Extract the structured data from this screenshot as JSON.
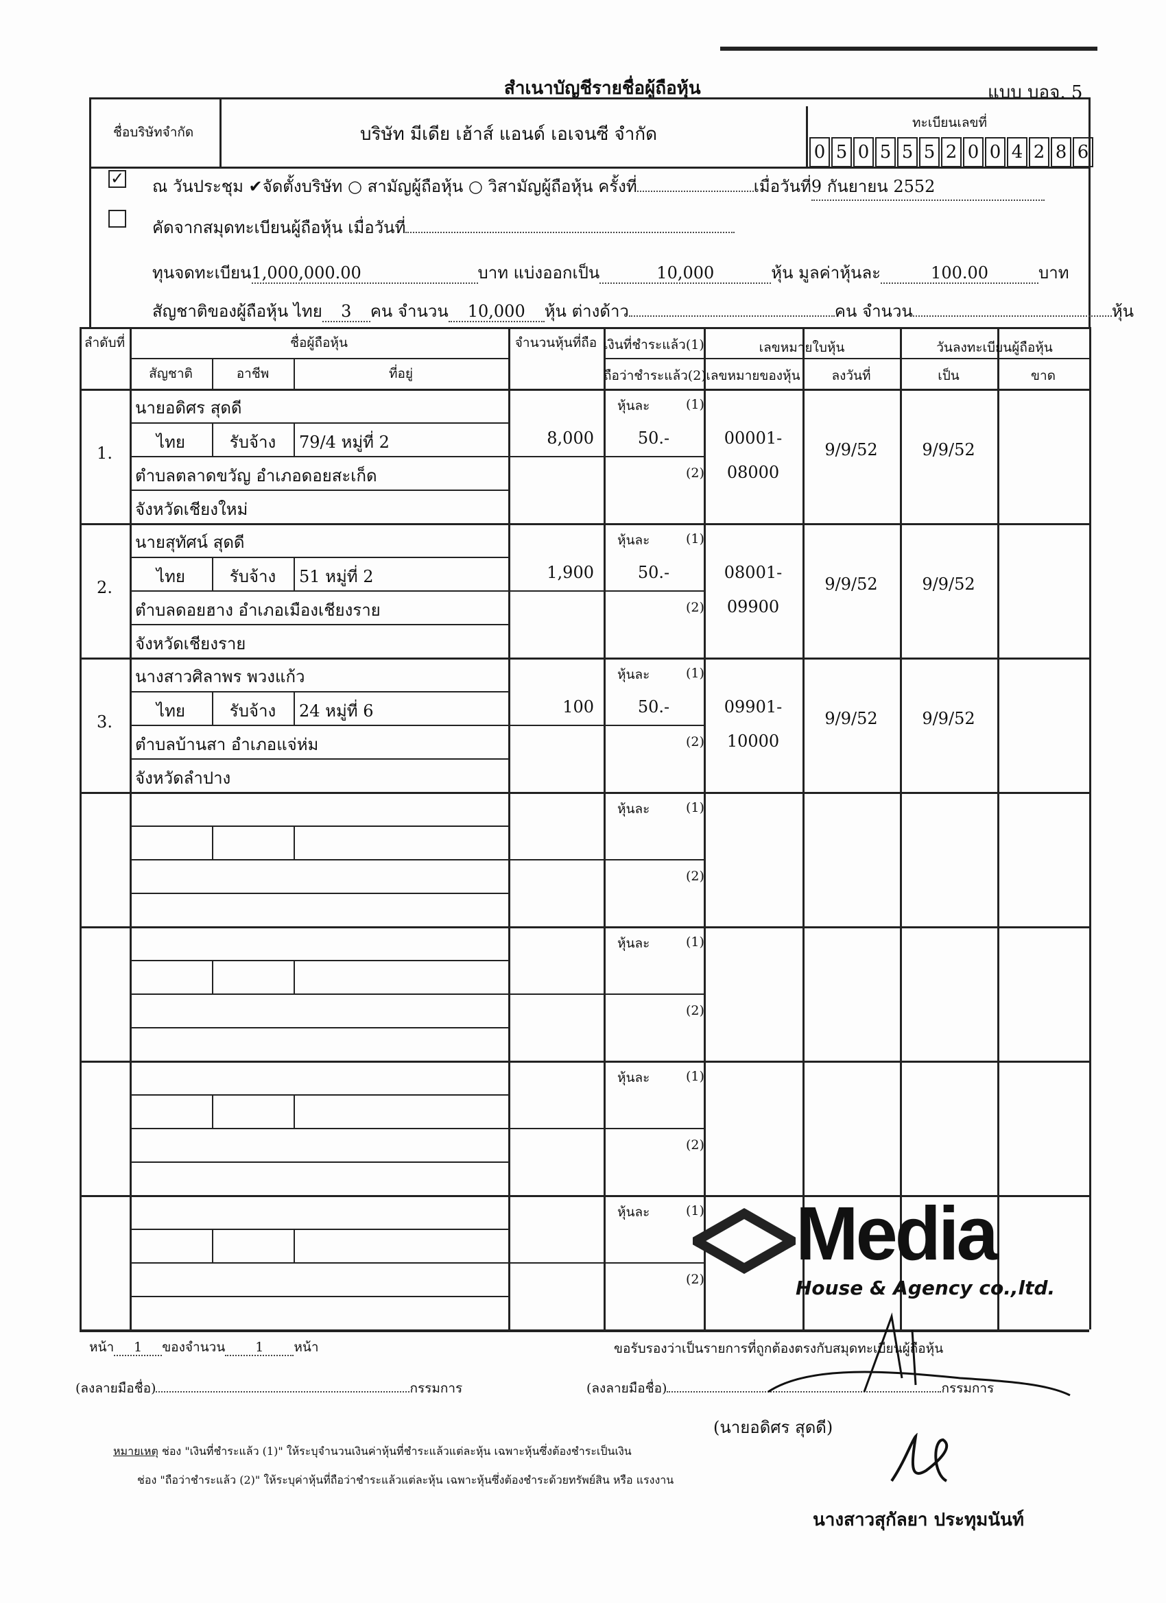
{
  "header": {
    "title": "สำเนาบัญชีรายชื่อผู้ถือหุ้น",
    "form_code": "แบบ บอจ. 5"
  },
  "company": {
    "label": "ชื่อบริษัทจำกัด",
    "name": "บริษัท  มีเดีย เฮ้าส์ แอนด์ เอเจนซี จำกัด",
    "reg_label": "ทะเบียนเลขที่",
    "reg_digits": [
      "0",
      "5",
      "0",
      "5",
      "5",
      "5",
      "2",
      "0",
      "0",
      "4",
      "2",
      "8",
      "6"
    ]
  },
  "meeting": {
    "checked": true,
    "text_prefix": "ณ วันประชุม",
    "opt_found": "จัดตั้งบริษัท",
    "opt_found_checked": true,
    "opt_ordinary": "สามัญผู้ถือหุ้น",
    "opt_extra": "วิสามัญผู้ถือหุ้น",
    "time_label": "ครั้งที่",
    "time_value": "",
    "date_label": "เมื่อวันที่",
    "date_value": "9 กันยายน 2552"
  },
  "copied": {
    "checked": false,
    "text": "คัดจากสมุดทะเบียนผู้ถือหุ้น  เมื่อวันที่",
    "date_value": ""
  },
  "capital": {
    "label": "ทุนจดทะเบียน",
    "amount": "1,000,000.00",
    "baht": "บาท แบ่งออกเป็น",
    "shares": "10,000",
    "shares_unit": "หุ้น มูลค่าหุ้นละ",
    "par": "100.00",
    "par_unit": "บาท"
  },
  "nationality": {
    "label": "สัญชาติของผู้ถือหุ้น  ไทย",
    "thai_count": "3",
    "person": "คน จำนวน",
    "thai_shares": "10,000",
    "shares_foreign": "หุ้น ต่างด้าว",
    "foreign_count": "",
    "person2": "คน จำนวน",
    "foreign_shares": "",
    "unit": "หุ้น"
  },
  "table": {
    "h_no": "ลำดับที่",
    "h_name": "ชื่อผู้ถือหุ้น",
    "h_nat": "สัญชาติ",
    "h_occ": "อาชีพ",
    "h_addr": "ที่อยู่",
    "h_shares": "จำนวนหุ้นที่ถือ",
    "h_paid1": "เงินที่ชำระแล้ว(1)",
    "h_paid2": "ถือว่าชำระแล้ว(2)",
    "h_cert": "เลขหมายใบหุ้น",
    "h_cert_no": "เลขหมายของหุ้น",
    "h_cert_date": "ลงวันที่",
    "h_reg": "วันลงทะเบียนผู้ถือหุ้น",
    "h_reg_in": "เป็น",
    "h_reg_out": "ขาด",
    "per_share": "หุ้นละ",
    "mark1": "(1)",
    "mark2": "(2)",
    "rows": [
      {
        "no": "1.",
        "name": "นายอดิศร  สุดดี",
        "nat": "ไทย",
        "occ": "รับจ้าง",
        "addr1": "79/4  หมู่ที่ 2",
        "addr2": "ตำบลตลาดขวัญ  อำเภอดอยสะเก็ด",
        "addr3": "จังหวัดเชียงใหม่",
        "shares": "8,000",
        "paid": "50.-",
        "cert_from": "00001-",
        "cert_to": "08000",
        "cert_date": "9/9/52",
        "reg_in": "9/9/52",
        "reg_out": ""
      },
      {
        "no": "2.",
        "name": "นายสุทัศน์  สุดดี",
        "nat": "ไทย",
        "occ": "รับจ้าง",
        "addr1": "51  หมู่ที่ 2",
        "addr2": "ตำบลดอยฮาง  อำเภอเมืองเชียงราย",
        "addr3": "จังหวัดเชียงราย",
        "shares": "1,900",
        "paid": "50.-",
        "cert_from": "08001-",
        "cert_to": "09900",
        "cert_date": "9/9/52",
        "reg_in": "9/9/52",
        "reg_out": ""
      },
      {
        "no": "3.",
        "name": "นางสาวศิลาพร  พวงแก้ว",
        "nat": "ไทย",
        "occ": "รับจ้าง",
        "addr1": "24  หมู่ที่ 6",
        "addr2": "ตำบลบ้านสา  อำเภอแจ่ห่ม",
        "addr3": "จังหวัดลำปาง",
        "shares": "100",
        "paid": "50.-",
        "cert_from": "09901-",
        "cert_to": "10000",
        "cert_date": "9/9/52",
        "reg_in": "9/9/52",
        "reg_out": ""
      },
      {},
      {},
      {},
      {}
    ]
  },
  "stamp": {
    "brand": "Media",
    "sub": "House & Agency co.,ltd."
  },
  "footer": {
    "page_label": "หน้า",
    "page": "1",
    "of_label": "ของจำนวน",
    "total": "1",
    "page_unit": "หน้า",
    "certify": "ขอรับรองว่าเป็นรายการที่ถูกต้องตรงกับสมุดทะเบียนผู้ถือหุ้น",
    "sign_label": "(ลงลายมือชื่อ)",
    "director": "กรรมการ",
    "signer": "(นายอดิศร         สุดดี)",
    "note_label": "หมายเหตุ",
    "note1": "ช่อง \"เงินที่ชำระแล้ว (1)\"  ให้ระบุจำนวนเงินค่าหุ้นที่ชำระแล้วแต่ละหุ้น เฉพาะหุ้นซึ่งต้องชำระเป็นเงิน",
    "note2": "ช่อง \"ถือว่าชำระแล้ว (2)\"  ให้ระบุค่าหุ้นที่ถือว่าชำระแล้วแต่ละหุ้น เฉพาะหุ้นซึ่งต้องชำระด้วยทรัพย์สิน หรือ แรงงาน",
    "witness": "นางสาวสุกัลยา ประทุมนันท์"
  }
}
